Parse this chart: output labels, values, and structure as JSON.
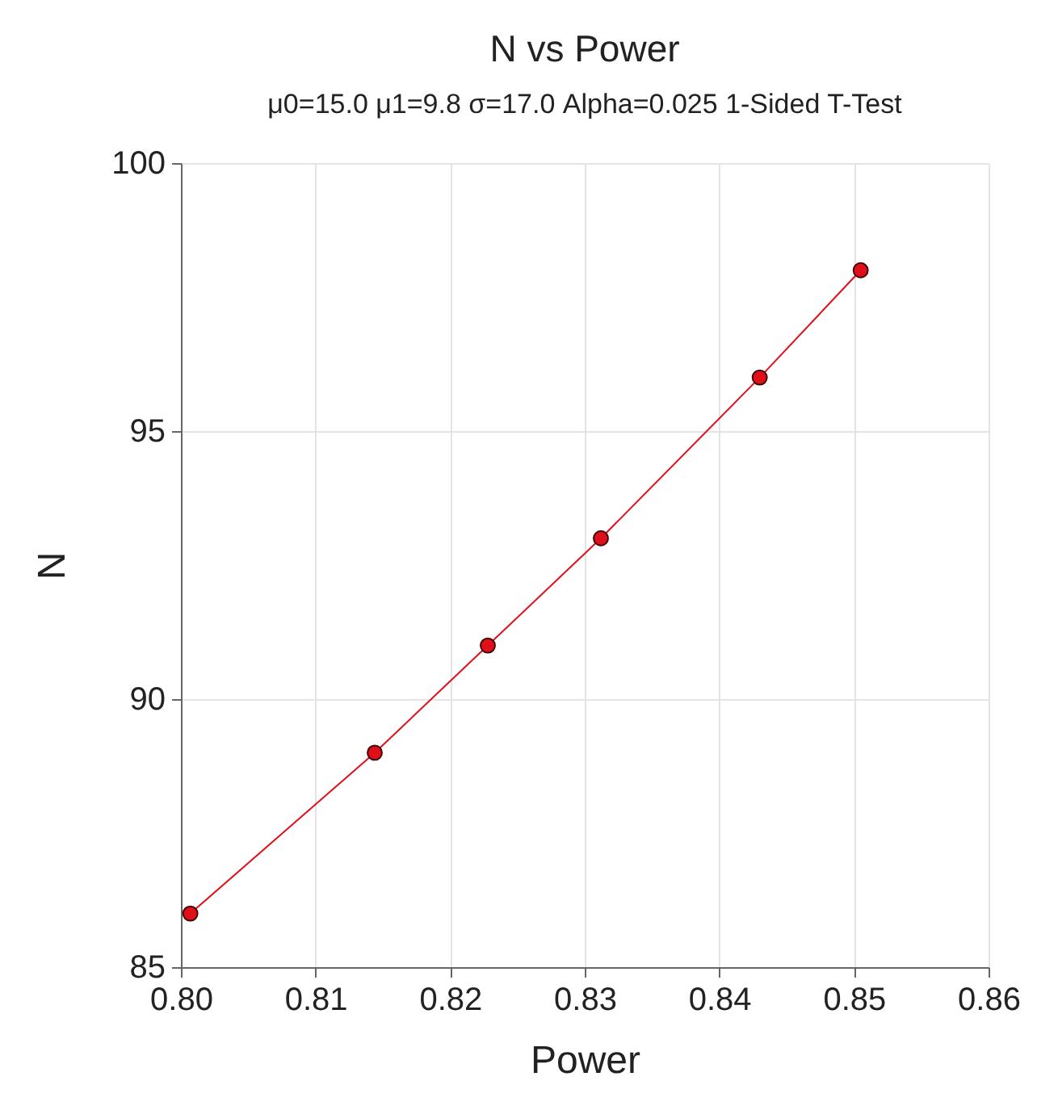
{
  "chart_data": {
    "type": "line",
    "title": "N vs Power",
    "subtitle": "μ0=15.0 μ1=9.8 σ=17.0 Alpha=0.025 1-Sided T-Test",
    "xlabel": "Power",
    "ylabel": "N",
    "x": [
      0.8007,
      0.8144,
      0.8228,
      0.8312,
      0.843,
      0.8505
    ],
    "series": [
      {
        "color": "#e0101a",
        "values": [
          86,
          89,
          91,
          93,
          96,
          98
        ]
      }
    ],
    "xlim": [
      0.8,
      0.86
    ],
    "xticks": [
      {
        "value": 0.8,
        "label": "0.80"
      },
      0.81,
      0.82,
      0.83,
      0.84,
      0.85,
      0.86
    ],
    "ylim": [
      85,
      100
    ],
    "yticks": [
      85,
      90,
      95,
      100
    ],
    "grid": true,
    "marker": "circle",
    "line_style": "solid"
  }
}
